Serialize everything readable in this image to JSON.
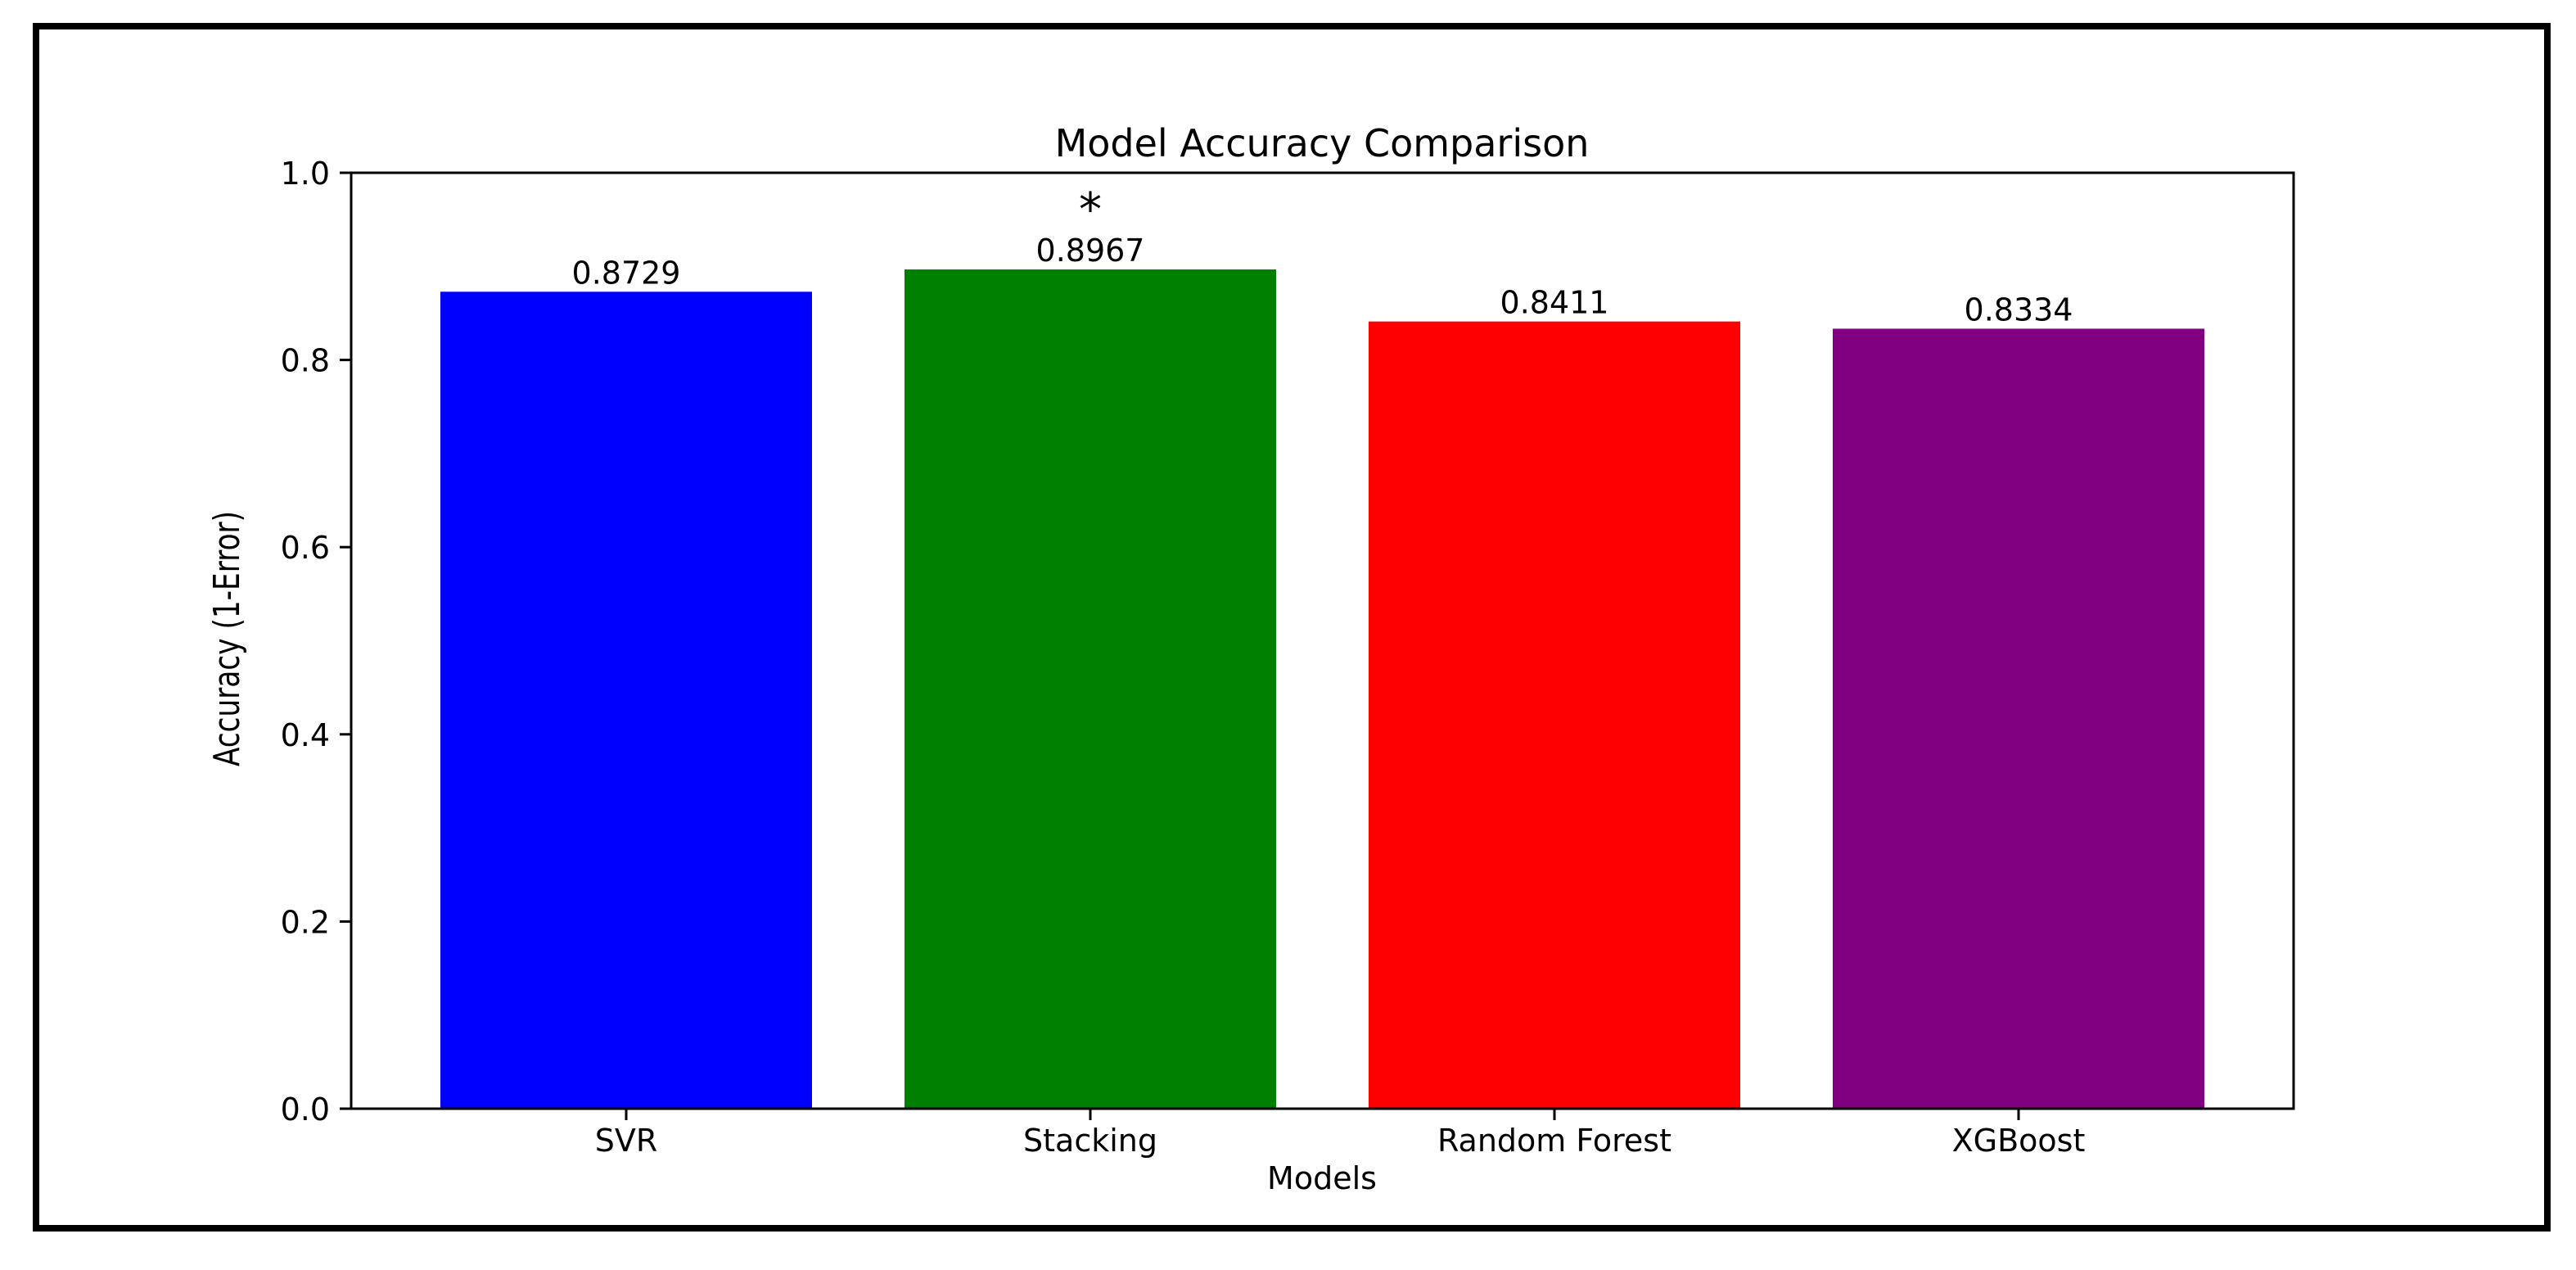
{
  "chart_data": {
    "type": "bar",
    "title": "Model Accuracy Comparison",
    "xlabel": "Models",
    "ylabel": "Accuracy (1-Error)",
    "categories": [
      "SVR",
      "Stacking",
      "Random Forest",
      "XGBoost"
    ],
    "values": [
      0.8729,
      0.8967,
      0.8411,
      0.8334
    ],
    "value_labels": [
      "0.8729",
      "0.8967",
      "0.8411",
      "0.8334"
    ],
    "colors": [
      "#0000ff",
      "#008000",
      "#ff0000",
      "#800080"
    ],
    "ylim": [
      0,
      1.0
    ],
    "yticks": [
      0.0,
      0.2,
      0.4,
      0.6,
      0.8,
      1.0
    ],
    "ytick_labels": [
      "0.0",
      "0.2",
      "0.4",
      "0.6",
      "0.8",
      "1.0"
    ],
    "grid": false,
    "legend": "none",
    "annotations": [
      {
        "category": "Stacking",
        "text": "*"
      }
    ]
  }
}
